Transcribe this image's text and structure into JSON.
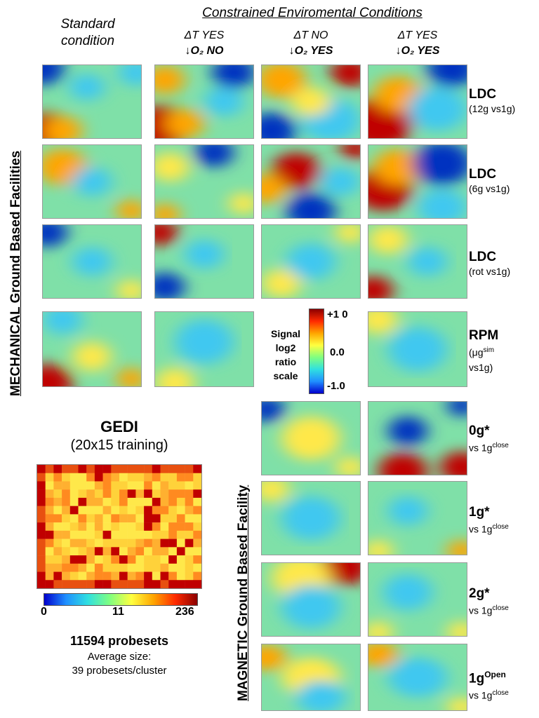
{
  "header": {
    "standard_line1": "Standard",
    "standard_line2": "condition",
    "constrained_title": "Constrained Enviromental Conditions",
    "columns": [
      {
        "dt": "ΔT YES",
        "o2": "↓O₂ NO"
      },
      {
        "dt": "ΔT NO",
        "o2": "↓O₂ YES"
      },
      {
        "dt": "ΔT YES",
        "o2": "↓O₂ YES"
      }
    ]
  },
  "side_labels": {
    "mechanical": "MECHANICAL Ground Based Facilities",
    "magnetic": "MAGNETIC Ground Based Facility"
  },
  "row_labels": [
    {
      "main": "LDC",
      "sub": "(12g vs1g)"
    },
    {
      "main": "LDC",
      "sub": "(6g vs1g)"
    },
    {
      "main": "LDC",
      "sub": "(rot vs1g)"
    },
    {
      "main": "RPM",
      "sub1": "(μg",
      "sup": "sim",
      "sub2": "vs1g)"
    },
    {
      "main": "0g*",
      "sub": "vs 1g",
      "sup": "close"
    },
    {
      "main": "1g*",
      "sub": "vs 1g",
      "sup": "close"
    },
    {
      "main": "2g*",
      "sub": "vs 1g",
      "sup": "close"
    },
    {
      "main": "1g",
      "main_sup": "Open",
      "sub": "vs 1g",
      "sup": "close"
    }
  ],
  "signal_legend": {
    "label_lines": [
      "Signal",
      "log2",
      "ratio",
      "scale"
    ],
    "max": "+1 0",
    "mid": "0.0",
    "min": "-1.0",
    "colors": [
      "#8b0000",
      "#ff2a00",
      "#ffa500",
      "#ffff40",
      "#80ff80",
      "#30e0e0",
      "#2090ff",
      "#0000cd"
    ]
  },
  "gedi": {
    "title": "GEDI",
    "subtitle": "(20x15 training)",
    "scale_min": "0",
    "scale_mid": "11",
    "scale_max": "236",
    "probesets": "11594 probesets",
    "avg_line1": "Average size:",
    "avg_line2": "39 probesets/cluster"
  },
  "colors": {
    "baseline": "#7fe0a8",
    "red": "#c00000",
    "orange": "#ffa500",
    "yellow": "#ffe84a",
    "cyan": "#40c8f0",
    "blue": "#0030c0"
  }
}
